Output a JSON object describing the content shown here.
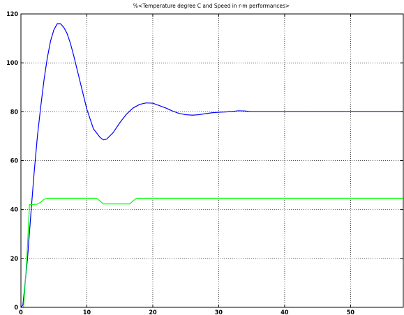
{
  "chart_data": {
    "type": "line",
    "title": "%<Temperature degree C and Speed in r-m performances>",
    "xlabel": "",
    "ylabel": "",
    "xlim": [
      0,
      58
    ],
    "ylim": [
      0,
      120
    ],
    "x_ticks": [
      0,
      10,
      20,
      30,
      40,
      50
    ],
    "y_ticks": [
      0,
      20,
      40,
      60,
      80,
      100,
      120
    ],
    "grid": true,
    "series": [
      {
        "color": "#0000ff",
        "points": [
          [
            0,
            0
          ],
          [
            0.3,
            1
          ],
          [
            1,
            20
          ],
          [
            1.5,
            38
          ],
          [
            2,
            55
          ],
          [
            2.5,
            70
          ],
          [
            3,
            82
          ],
          [
            3.5,
            93
          ],
          [
            4,
            102
          ],
          [
            4.5,
            109
          ],
          [
            5,
            113.5
          ],
          [
            5.5,
            116
          ],
          [
            6,
            116
          ],
          [
            6.5,
            114.5
          ],
          [
            7,
            112
          ],
          [
            7.5,
            108
          ],
          [
            8,
            103
          ],
          [
            9,
            92
          ],
          [
            10,
            81
          ],
          [
            11,
            73
          ],
          [
            12,
            69.5
          ],
          [
            12.5,
            68.5
          ],
          [
            13,
            68.8
          ],
          [
            14,
            71.5
          ],
          [
            15,
            75.5
          ],
          [
            16,
            79
          ],
          [
            17,
            81.5
          ],
          [
            18,
            83
          ],
          [
            19,
            83.6
          ],
          [
            20,
            83.5
          ],
          [
            21,
            82.5
          ],
          [
            22,
            81.5
          ],
          [
            23,
            80.3
          ],
          [
            24,
            79.3
          ],
          [
            25,
            78.8
          ],
          [
            26,
            78.6
          ],
          [
            27,
            78.8
          ],
          [
            28,
            79.2
          ],
          [
            29,
            79.6
          ],
          [
            30,
            79.8
          ],
          [
            31,
            79.9
          ],
          [
            32,
            80.1
          ],
          [
            33,
            80.4
          ],
          [
            34,
            80.3
          ],
          [
            35,
            80.0
          ],
          [
            36,
            80.0
          ],
          [
            40,
            80
          ],
          [
            45,
            80
          ],
          [
            50,
            80
          ],
          [
            58,
            80
          ]
        ]
      },
      {
        "color": "#00ff00",
        "points": [
          [
            0,
            0
          ],
          [
            0.4,
            0
          ],
          [
            0.9,
            20
          ],
          [
            1.3,
            42
          ],
          [
            2.5,
            42.2
          ],
          [
            3,
            43
          ],
          [
            3.5,
            44.2
          ],
          [
            4,
            44.6
          ],
          [
            11.5,
            44.6
          ],
          [
            12,
            43.5
          ],
          [
            12.5,
            42.3
          ],
          [
            16.5,
            42.3
          ],
          [
            17,
            43.5
          ],
          [
            17.5,
            44.6
          ],
          [
            58,
            44.6
          ]
        ]
      }
    ]
  }
}
